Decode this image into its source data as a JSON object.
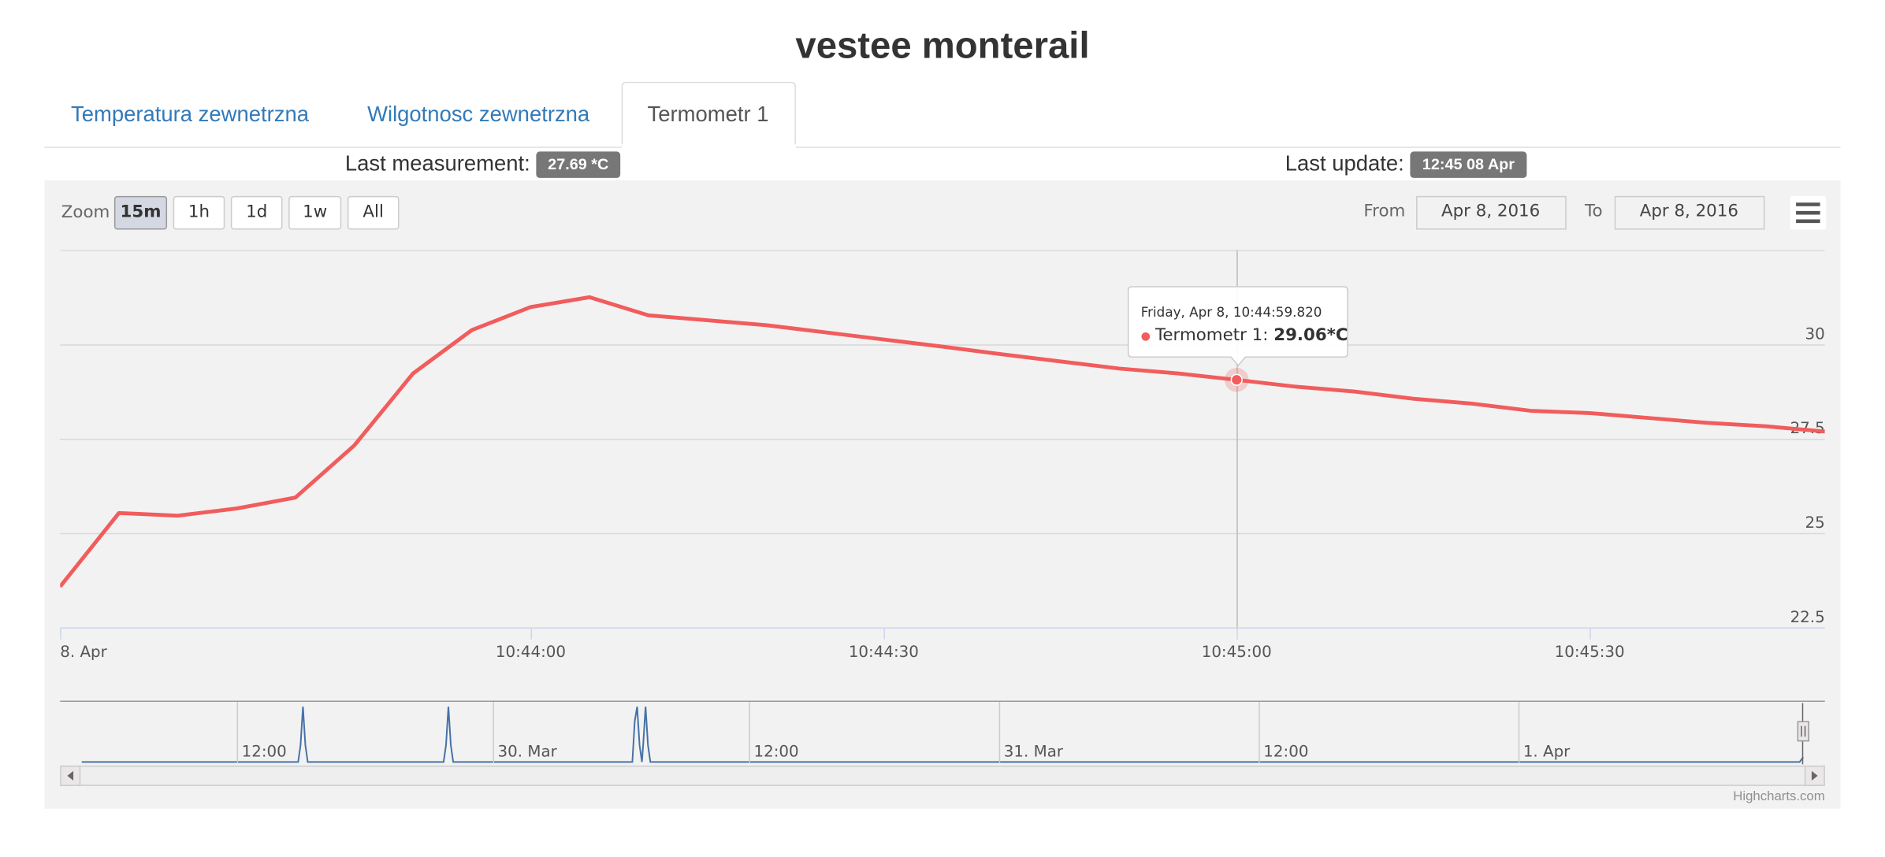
{
  "header": {
    "title": "vestee monterail"
  },
  "tabs": [
    "Temperatura zewnetrzna",
    "Wilgotnosc zewnetrzna",
    "Termometr 1"
  ],
  "status": {
    "measurement_label": "Last measurement:",
    "measurement": "27.69 *C",
    "update_label": "Last update:",
    "update": "12:45 08 Apr"
  },
  "toolbar": {
    "zoom_label": "Zoom",
    "zoom_buttons": [
      "15m",
      "1h",
      "1d",
      "1w",
      "All"
    ],
    "selected_zoom": "15m",
    "from_label": "From",
    "from": "Apr 8, 2016",
    "to_label": "To",
    "to": "Apr 8, 2016"
  },
  "chart_data": {
    "type": "line",
    "x": [
      "10:43:20",
      "10:43:25",
      "10:43:30",
      "10:43:35",
      "10:43:40",
      "10:43:45",
      "10:43:50",
      "10:43:55",
      "10:44:00",
      "10:44:05",
      "10:44:10",
      "10:44:15",
      "10:44:20",
      "10:44:25",
      "10:44:30",
      "10:44:35",
      "10:44:40",
      "10:44:45",
      "10:44:50",
      "10:44:55",
      "10:45:00",
      "10:45:05",
      "10:45:10",
      "10:45:15",
      "10:45:20",
      "10:45:25",
      "10:45:30",
      "10:45:35",
      "10:45:40",
      "10:45:45",
      "10:45:50"
    ],
    "series": [
      {
        "name": "Termometr 1",
        "color": "#f15c5c",
        "values": [
          23.58,
          25.53,
          25.46,
          25.65,
          25.94,
          27.32,
          29.23,
          30.38,
          30.99,
          31.25,
          30.77,
          30.64,
          30.51,
          30.32,
          30.13,
          29.94,
          29.74,
          29.55,
          29.36,
          29.23,
          29.06,
          28.88,
          28.75,
          28.56,
          28.43,
          28.24,
          28.18,
          28.05,
          27.92,
          27.83,
          27.69
        ]
      }
    ],
    "xlim": [
      "10:43:20",
      "10:45:50"
    ],
    "xticks": [
      {
        "value": "10:43:20",
        "label": "8. Apr"
      },
      "10:44:00",
      "10:44:30",
      "10:45:00",
      "10:45:30"
    ],
    "ylim": [
      22.5,
      32.5
    ],
    "yticks": [
      22.5,
      25,
      27.5,
      30
    ],
    "grid": true,
    "tooltip": {
      "header": "Friday, Apr 8, 10:44:59.820",
      "series_label": "Termometr 1:",
      "value": 29.06,
      "label": "29.06*C"
    }
  },
  "navigator": {
    "labels": [
      "12:00",
      "30. Mar",
      "12:00",
      "31. Mar",
      "12:00",
      "1. Apr"
    ]
  },
  "credits": "Highcharts.com"
}
